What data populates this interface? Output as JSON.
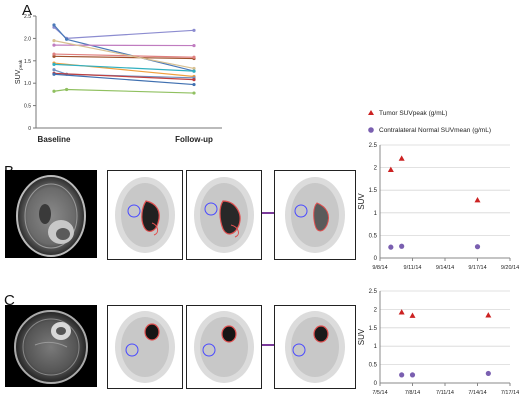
{
  "panels": {
    "a_label": "A",
    "b_label": "B",
    "c_label": "C"
  },
  "chart_data": [
    {
      "type": "line",
      "panel": "A",
      "categories": [
        "Baseline",
        "Follow-up"
      ],
      "ylabel": "SUVpeak",
      "ylim": [
        0,
        2.5
      ],
      "yticks": [
        "0",
        "0.5",
        "1.0",
        "1.5",
        "2.0",
        "2.5"
      ],
      "grid": false,
      "series": [
        {
          "color": "#8c8cd0",
          "values": [
            2.25,
            2.18
          ],
          "midpoint": {
            "x": 0.09,
            "y": 2.0
          }
        },
        {
          "color": "#4a79b8",
          "values": [
            2.3,
            1.27
          ],
          "midpoint": {
            "x": 0.09,
            "y": 1.98
          }
        },
        {
          "color": "#a0522d",
          "values": [
            1.6,
            1.55
          ]
        },
        {
          "color": "#e08080",
          "values": [
            1.65,
            1.58
          ]
        },
        {
          "color": "#c07cc0",
          "values": [
            1.85,
            1.84
          ]
        },
        {
          "color": "#d8c090",
          "values": [
            1.95,
            1.33
          ]
        },
        {
          "color": "#f0a040",
          "values": [
            1.45,
            1.15
          ]
        },
        {
          "color": "#30b0c0",
          "values": [
            1.42,
            1.27
          ]
        },
        {
          "color": "#7090c0",
          "values": [
            1.3,
            1.12
          ],
          "midpoint": {
            "x": 0.09,
            "y": 1.2
          }
        },
        {
          "color": "#c04040",
          "values": [
            1.22,
            1.08
          ]
        },
        {
          "color": "#4070b0",
          "values": [
            1.2,
            0.97
          ]
        },
        {
          "color": "#90c060",
          "values": [
            0.82,
            0.78
          ],
          "midpoint": {
            "x": 0.09,
            "y": 0.86
          }
        }
      ]
    },
    {
      "type": "scatter",
      "panel": "B",
      "ylabel": "SUV",
      "ylim": [
        0,
        2.5
      ],
      "yticks": [
        "0",
        "0.5",
        "1",
        "1.5",
        "2",
        "2.5"
      ],
      "x_dates": [
        "9/8/14",
        "9/11/14",
        "9/14/14",
        "9/17/14",
        "9/20/14"
      ],
      "legend": [
        "Tumor SUVpeak (g/mL)",
        "Contralateral Normal SUVmean (g/mL)"
      ],
      "legend_placement": "top",
      "series": [
        {
          "name": "Tumor SUVpeak (g/mL)",
          "marker": "triangle",
          "color": "#cc2222",
          "points": [
            {
              "x": "9/9/14",
              "y": 1.95
            },
            {
              "x": "9/10/14",
              "y": 2.2
            },
            {
              "x": "9/17/14",
              "y": 1.28
            }
          ]
        },
        {
          "name": "Contralateral Normal SUVmean (g/mL)",
          "marker": "circle",
          "color": "#7a5fb0",
          "points": [
            {
              "x": "9/9/14",
              "y": 0.24
            },
            {
              "x": "9/10/14",
              "y": 0.26
            },
            {
              "x": "9/17/14",
              "y": 0.25
            }
          ]
        }
      ]
    },
    {
      "type": "scatter",
      "panel": "C",
      "ylabel": "SUV",
      "ylim": [
        0,
        2.5
      ],
      "yticks": [
        "0",
        "0.5",
        "1",
        "1.5",
        "2",
        "2.5"
      ],
      "x_dates": [
        "7/5/14",
        "7/8/14",
        "7/11/14",
        "7/14/14",
        "7/17/14"
      ],
      "series": [
        {
          "name": "Tumor SUVpeak (g/mL)",
          "marker": "triangle",
          "color": "#cc2222",
          "points": [
            {
              "x": "7/7/14",
              "y": 1.92
            },
            {
              "x": "7/8/14",
              "y": 1.83
            },
            {
              "x": "7/15/14",
              "y": 1.84
            }
          ]
        },
        {
          "name": "Contralateral Normal SUVmean (g/mL)",
          "marker": "circle",
          "color": "#7a5fb0",
          "points": [
            {
              "x": "7/7/14",
              "y": 0.22
            },
            {
              "x": "7/8/14",
              "y": 0.22
            },
            {
              "x": "7/15/14",
              "y": 0.26
            }
          ]
        }
      ]
    }
  ]
}
